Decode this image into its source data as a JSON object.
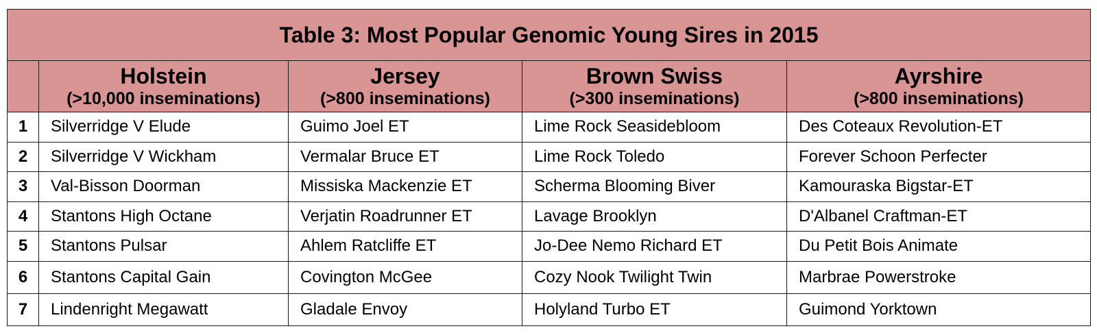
{
  "title": "Table 3: Most Popular Genomic Young Sires in 2015",
  "colors": {
    "header_background": "#d99594",
    "border": "#1a1a1a"
  },
  "columns": [
    {
      "breed": "Holstein",
      "threshold": "(>10,000 inseminations)"
    },
    {
      "breed": "Jersey",
      "threshold": "(>800 inseminations)"
    },
    {
      "breed": "Brown Swiss",
      "threshold": "(>300 inseminations)"
    },
    {
      "breed": "Ayrshire",
      "threshold": "(>800 inseminations)"
    }
  ],
  "rows": [
    {
      "rank": "1",
      "cells": [
        "Silverridge V Elude",
        "Guimo Joel ET",
        "Lime Rock Seasidebloom",
        "Des Coteaux Revolution-ET"
      ]
    },
    {
      "rank": "2",
      "cells": [
        "Silverridge V Wickham",
        "Vermalar Bruce ET",
        "Lime Rock Toledo",
        "Forever Schoon Perfecter"
      ]
    },
    {
      "rank": "3",
      "cells": [
        "Val-Bisson Doorman",
        "Missiska Mackenzie ET",
        "Scherma Blooming Biver",
        "Kamouraska Bigstar-ET"
      ]
    },
    {
      "rank": "4",
      "cells": [
        "Stantons High Octane",
        "Verjatin Roadrunner ET",
        "Lavage Brooklyn",
        "D'Albanel Craftman-ET"
      ]
    },
    {
      "rank": "5",
      "cells": [
        "Stantons Pulsar",
        "Ahlem Ratcliffe ET",
        "Jo-Dee Nemo Richard ET",
        "Du Petit Bois Animate"
      ]
    },
    {
      "rank": "6",
      "cells": [
        "Stantons Capital Gain",
        "Covington McGee",
        "Cozy Nook Twilight Twin",
        "Marbrae Powerstroke"
      ]
    },
    {
      "rank": "7",
      "cells": [
        "Lindenright Megawatt",
        "Gladale Envoy",
        "Holyland Turbo ET",
        "Guimond Yorktown"
      ]
    }
  ]
}
